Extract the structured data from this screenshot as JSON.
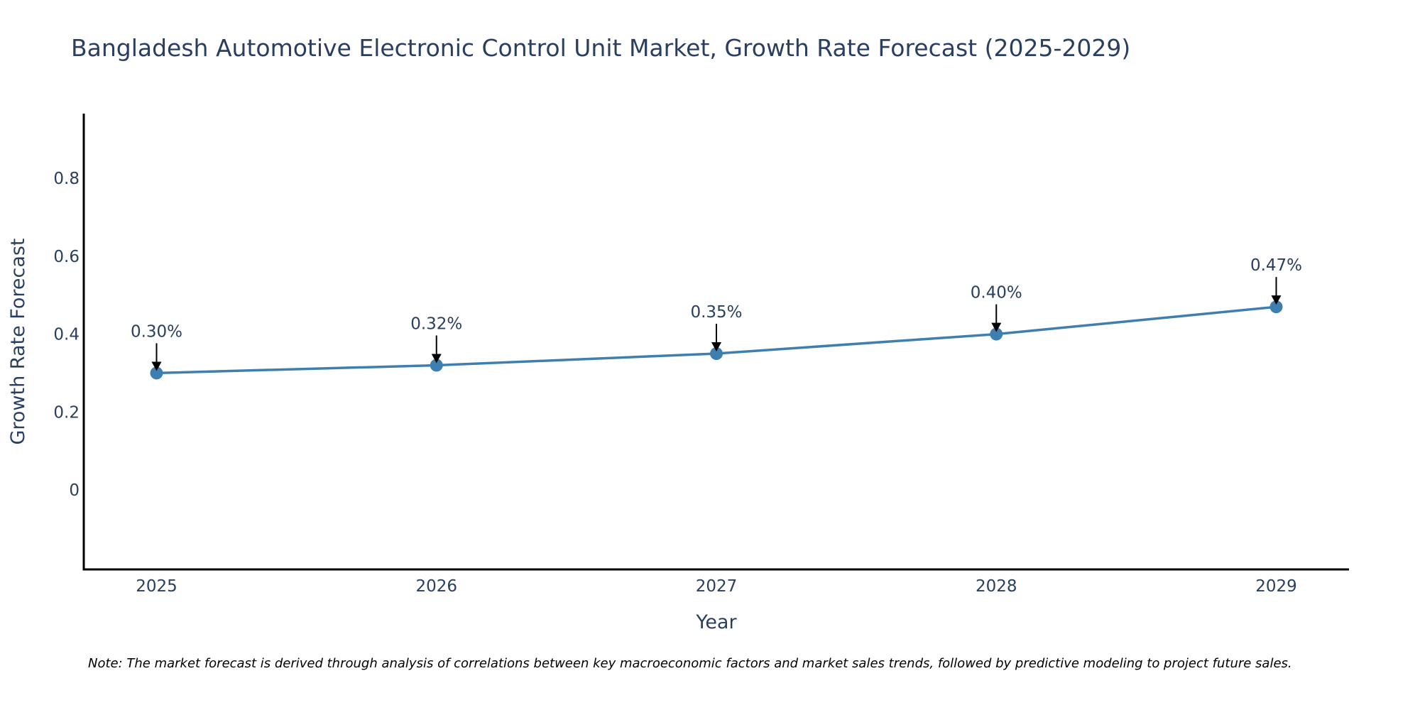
{
  "chart_data": {
    "type": "line",
    "title": "Bangladesh Automotive Electronic Control Unit Market, Growth Rate Forecast (2025-2029)",
    "xlabel": "Year",
    "ylabel": "Growth Rate Forecast",
    "x": [
      2025,
      2026,
      2027,
      2028,
      2029
    ],
    "x_tick_labels": [
      "2025",
      "2026",
      "2027",
      "2028",
      "2029"
    ],
    "series": [
      {
        "name": "Growth Rate Forecast",
        "values": [
          0.3,
          0.32,
          0.35,
          0.4,
          0.47
        ],
        "color": "#3f7fb0",
        "mode": "lines+markers"
      }
    ],
    "annotations": [
      "0.30%",
      "0.32%",
      "0.35%",
      "0.40%",
      "0.47%"
    ],
    "y_ticks": [
      0,
      0.2,
      0.4,
      0.6,
      0.8
    ],
    "y_tick_labels": [
      "0",
      "0.2",
      "0.4",
      "0.6",
      "0.8"
    ],
    "ylim": [
      -0.204,
      0.966
    ],
    "xlim": [
      2024.74,
      2029.26
    ],
    "grid": false,
    "legend": "none",
    "note": "Note: The market forecast is derived through analysis of correlations between key macroeconomic factors and market sales trends, followed by predictive modeling to project future sales."
  }
}
